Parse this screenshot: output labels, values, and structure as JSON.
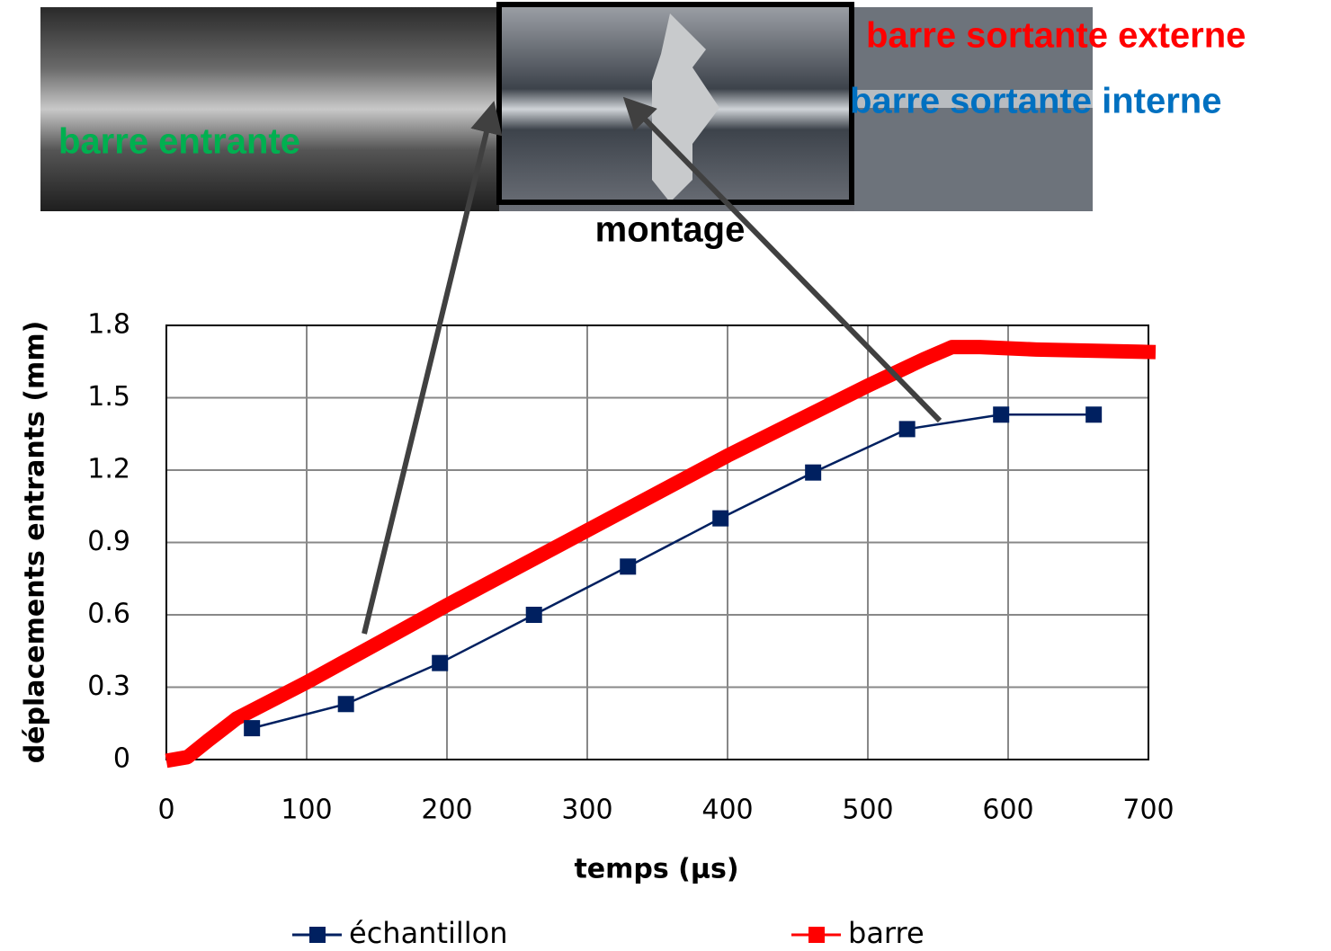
{
  "chart_data": {
    "type": "line",
    "x_label": "temps (µs)",
    "y_label": "déplacements entrants (mm)",
    "xlim": [
      0,
      700
    ],
    "xticks": [
      0,
      100,
      200,
      300,
      400,
      500,
      600,
      700
    ],
    "ylim": [
      0,
      1.8
    ],
    "yticks": [
      0,
      0.3,
      0.6,
      0.9,
      1.2,
      1.5,
      1.8
    ],
    "grid": true,
    "annotations": [
      {
        "text": "barre sortante externe",
        "color": "#ff0000"
      },
      {
        "text": "barre sortante interne",
        "color": "#0070c0"
      },
      {
        "text": "barre entrante",
        "color": "#00b050"
      },
      {
        "text": "montage",
        "color": "#000000"
      }
    ],
    "series": [
      {
        "name": "échantillon",
        "color": "#002060",
        "x": [
          61,
          128,
          195,
          262,
          329,
          395,
          461,
          528,
          595,
          661
        ],
        "values": [
          0.13,
          0.23,
          0.4,
          0.6,
          0.8,
          1.0,
          1.19,
          1.37,
          1.43,
          1.43
        ]
      },
      {
        "name": "barre",
        "color": "#ff0000",
        "x": [
          5,
          15,
          30,
          50,
          100,
          150,
          200,
          300,
          400,
          500,
          540,
          560,
          580,
          620,
          700
        ],
        "values": [
          0,
          0.01,
          0.08,
          0.17,
          0.32,
          0.48,
          0.64,
          0.95,
          1.26,
          1.55,
          1.66,
          1.71,
          1.71,
          1.7,
          1.69
        ]
      }
    ]
  }
}
